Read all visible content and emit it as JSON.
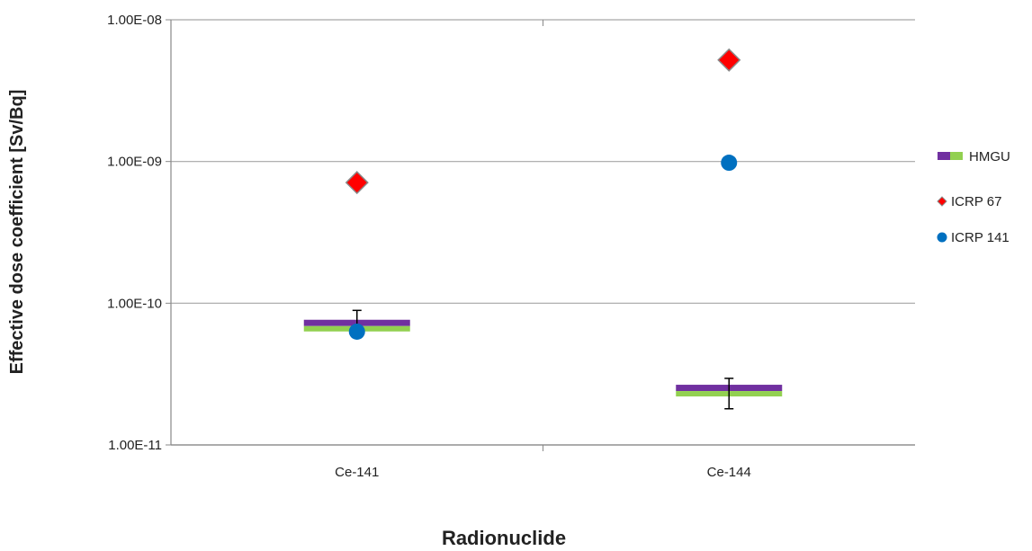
{
  "chart_data": {
    "type": "scatter",
    "title": "",
    "xlabel": "Radionuclide",
    "ylabel": "Effective dose coefficient [Sv/Bq]",
    "categories": [
      "Ce-141",
      "Ce-144"
    ],
    "y_scale": "log",
    "ylim": [
      1e-11,
      1e-08
    ],
    "y_ticks": [
      1e-11,
      1e-10,
      1e-09,
      1e-08
    ],
    "y_tick_labels": [
      "1.00E-11",
      "1.00E-10",
      "1.00E-09",
      "1.00E-08"
    ],
    "grid": "horizontal",
    "legend_position": "right",
    "series": [
      {
        "name": "HMGU",
        "marker": "bar",
        "colors": [
          "#7030a0",
          "#92d050"
        ],
        "values": [
          6.9e-11,
          2.4e-11
        ],
        "error_high": [
          8.9e-11,
          2.95e-11
        ],
        "error_low": [
          6.9e-11,
          1.8e-11
        ]
      },
      {
        "name": "ICRP 67",
        "marker": "diamond",
        "color": "#ff0000",
        "values": [
          7.1e-10,
          5.2e-09
        ]
      },
      {
        "name": "ICRP 141",
        "marker": "circle",
        "color": "#0070c0",
        "values": [
          6.3e-11,
          9.8e-10
        ]
      }
    ]
  }
}
